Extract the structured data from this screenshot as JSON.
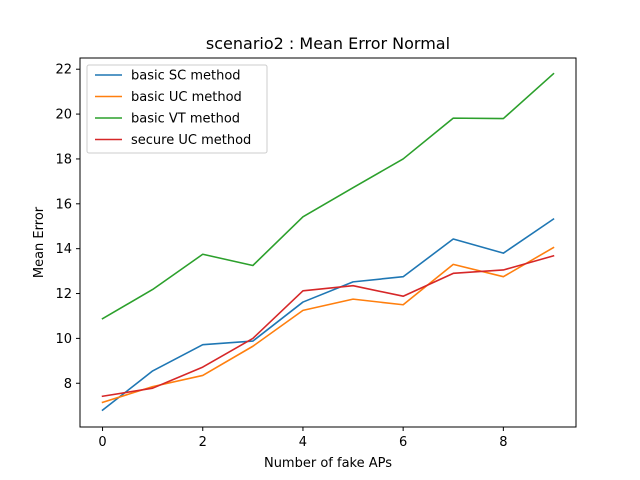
{
  "chart_data": {
    "type": "line",
    "title": "scenario2 : Mean Error Normal",
    "xlabel": "Number of fake APs",
    "ylabel": "Mean Error",
    "x": [
      0,
      1,
      2,
      3,
      4,
      5,
      6,
      7,
      8,
      9
    ],
    "xlim": [
      -0.45,
      9.45
    ],
    "ylim": [
      6.05,
      22.5
    ],
    "xticks": [
      0,
      2,
      4,
      6,
      8
    ],
    "yticks": [
      8,
      10,
      12,
      14,
      16,
      18,
      20,
      22
    ],
    "xtick_labels": [
      "0",
      "2",
      "4",
      "6",
      "8"
    ],
    "ytick_labels": [
      "8",
      "10",
      "12",
      "14",
      "16",
      "18",
      "20",
      "22"
    ],
    "grid": false,
    "legend_position": "top-left",
    "series": [
      {
        "name": "basic SC method",
        "color": "#1f77b4",
        "values": [
          6.8,
          8.55,
          9.72,
          9.88,
          11.62,
          12.52,
          12.75,
          14.43,
          13.8,
          15.32
        ]
      },
      {
        "name": "basic UC method",
        "color": "#ff7f0e",
        "values": [
          7.15,
          7.85,
          8.35,
          9.65,
          11.25,
          11.75,
          11.5,
          13.3,
          12.75,
          14.05
        ]
      },
      {
        "name": "basic VT method",
        "color": "#2ca02c",
        "values": [
          10.88,
          12.18,
          13.75,
          13.25,
          15.42,
          16.72,
          18.0,
          19.82,
          19.8,
          21.8
        ]
      },
      {
        "name": "secure UC method",
        "color": "#d62728",
        "values": [
          7.42,
          7.78,
          8.72,
          10.0,
          12.12,
          12.35,
          11.88,
          12.9,
          13.05,
          13.68
        ]
      }
    ]
  }
}
